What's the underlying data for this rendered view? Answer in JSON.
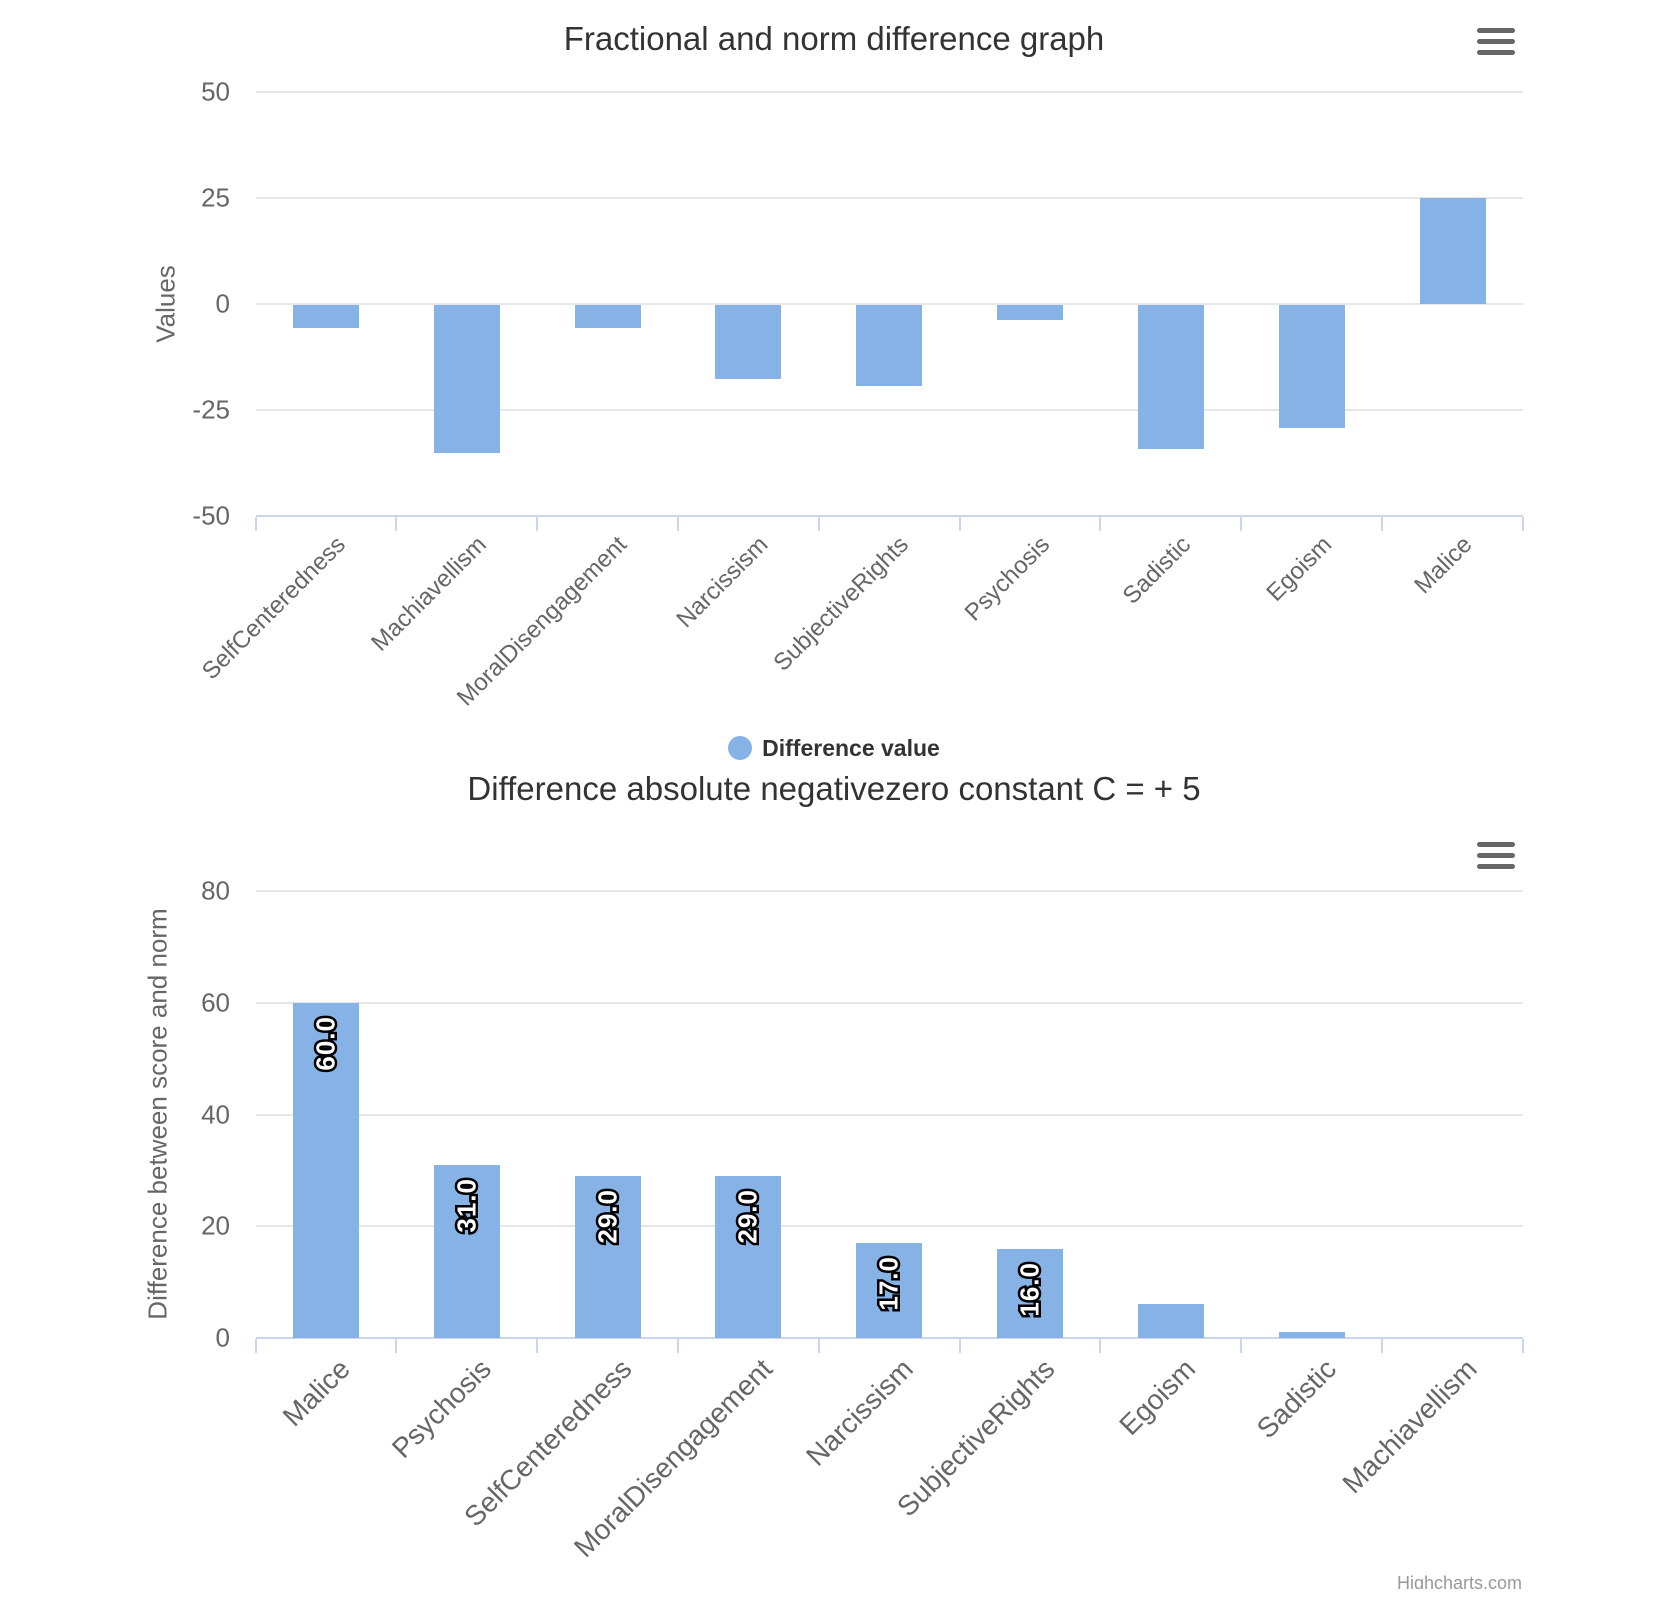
{
  "page": {
    "background": "#ffffff"
  },
  "colors": {
    "bar_fill": "#86b2e6",
    "gridline": "#e6e6e6",
    "axis_line": "#ccd6eb",
    "axis_label": "#666666",
    "title_text": "#333333",
    "legend_text": "#333333",
    "data_label_fill": "#ffffff",
    "data_label_outline": "#000000",
    "menu_icon": "#666666",
    "credits_text": "#999999"
  },
  "chart_data": [
    {
      "type": "bar",
      "title": "Fractional and norm difference graph",
      "ylabel": "Values",
      "xlabel": "",
      "categories": [
        "SelfCenteredness",
        "Machiavellism",
        "MoralDisengagement",
        "Narcissism",
        "SubjectiveRights",
        "Psychosis",
        "Sadistic",
        "Egoism",
        "Malice"
      ],
      "series": [
        {
          "name": "Difference value",
          "values": [
            -5.5,
            -35,
            -5.5,
            -17.5,
            -19,
            -3.5,
            -34,
            -29,
            25
          ]
        }
      ],
      "ylim": [
        -50,
        50
      ],
      "yticks": [
        50,
        25,
        0,
        -25,
        -50
      ],
      "grid": true,
      "legend": {
        "position": "bottom-center",
        "items": [
          "Difference value"
        ]
      },
      "menu_icon": "hamburger-icon"
    },
    {
      "type": "bar",
      "title": "Difference absolute negativezero constant C = + 5",
      "ylabel": "Difference between score and norm",
      "xlabel": "",
      "categories": [
        "Malice",
        "Psychosis",
        "SelfCenteredness",
        "MoralDisengagement",
        "Narcissism",
        "SubjectiveRights",
        "Egoism",
        "Sadistic",
        "Machiavellism"
      ],
      "series": [
        {
          "name": "",
          "values": [
            60,
            31,
            29,
            29,
            17,
            16,
            6,
            1,
            0
          ]
        }
      ],
      "data_labels": [
        "60.0",
        "31.0",
        "29.0",
        "29.0",
        "17.0",
        "16.0",
        "",
        "",
        ""
      ],
      "ylim": [
        0,
        80
      ],
      "yticks": [
        80,
        60,
        40,
        20,
        0
      ],
      "grid": true,
      "legend": null,
      "menu_icon": "hamburger-icon",
      "credits": "Highcharts.com"
    }
  ]
}
